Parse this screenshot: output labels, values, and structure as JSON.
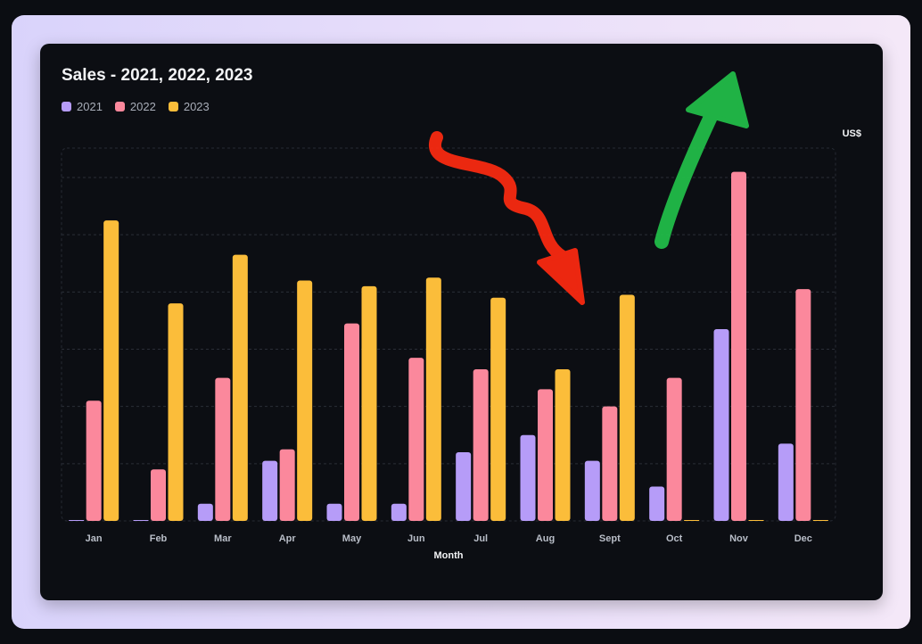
{
  "chart_data": {
    "type": "bar",
    "title": "Sales - 2021, 2022, 2023",
    "xlabel": "Month",
    "ylabel": "US$",
    "categories": [
      "Jan",
      "Feb",
      "Mar",
      "Apr",
      "May",
      "Jun",
      "Jul",
      "Aug",
      "Sept",
      "Oct",
      "Nov",
      "Dec"
    ],
    "ylim": [
      0,
      65
    ],
    "grid": true,
    "legend_position": "top-left",
    "series": [
      {
        "name": "2021",
        "color": "#b69cf8",
        "values": [
          0,
          0,
          3,
          10.5,
          3,
          3,
          12,
          15,
          10.5,
          6,
          33.5,
          13.5
        ]
      },
      {
        "name": "2022",
        "color": "#fb889c",
        "values": [
          21,
          9,
          25,
          12.5,
          34.5,
          28.5,
          26.5,
          23,
          20,
          25,
          61,
          40.5
        ]
      },
      {
        "name": "2023",
        "color": "#fbbd3a",
        "values": [
          52.5,
          38,
          46.5,
          42,
          41,
          42.5,
          39,
          26.5,
          39.5,
          0,
          0,
          0
        ]
      }
    ]
  },
  "annotations": [
    {
      "name": "red-down-arrow",
      "color": "#ff2a10",
      "direction": "down"
    },
    {
      "name": "green-up-arrow",
      "color": "#22c04a",
      "direction": "up"
    }
  ]
}
